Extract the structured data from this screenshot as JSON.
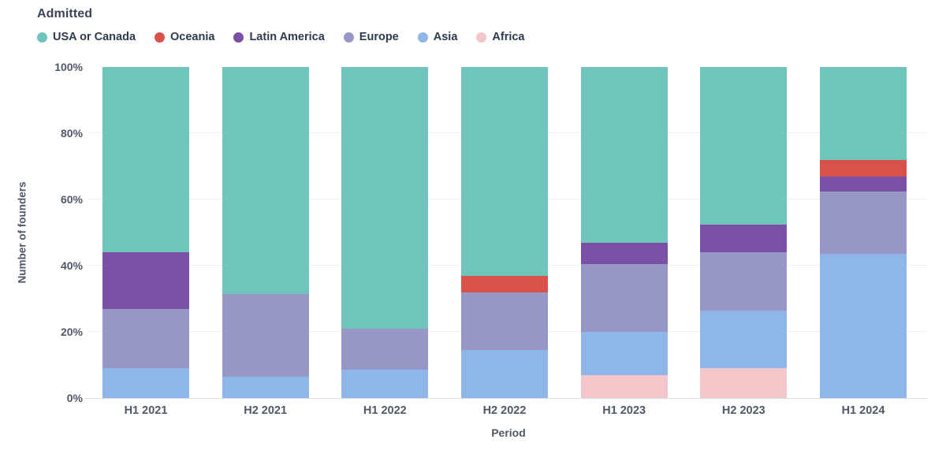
{
  "title": "Admitted",
  "legend": [
    {
      "label": "USA or Canada",
      "color": "#6FC4BB"
    },
    {
      "label": "Oceania",
      "color": "#D8524A"
    },
    {
      "label": "Latin America",
      "color": "#7A4FA6"
    },
    {
      "label": "Europe",
      "color": "#9697C5"
    },
    {
      "label": "Asia",
      "color": "#8FB6E8"
    },
    {
      "label": "Africa",
      "color": "#F3C6C9"
    }
  ],
  "chart_data": {
    "type": "bar",
    "variant": "stacked-100-percent",
    "title": "Admitted",
    "xlabel": "Period",
    "ylabel": "Number of founders",
    "ylim": [
      0,
      100
    ],
    "grid": "horizontal-light",
    "legend_position": "top-left",
    "categories": [
      "H1 2021",
      "H2 2021",
      "H1 2022",
      "H2 2022",
      "H1 2023",
      "H2 2023",
      "H1 2024"
    ],
    "y_ticks": [
      {
        "label": "0%",
        "value": 0
      },
      {
        "label": "20%",
        "value": 20
      },
      {
        "label": "40%",
        "value": 40
      },
      {
        "label": "60%",
        "value": 60
      },
      {
        "label": "80%",
        "value": 80
      },
      {
        "label": "100%",
        "value": 100
      }
    ],
    "gridline_values": [
      20,
      40,
      60,
      80
    ],
    "stack_order_bottom_to_top": [
      "Africa",
      "Asia",
      "Europe",
      "Latin America",
      "Oceania",
      "USA or Canada"
    ],
    "series": [
      {
        "name": "USA or Canada",
        "color": "#6FC4BB",
        "values": [
          56,
          68.5,
          79,
          63,
          53,
          47.5,
          28
        ]
      },
      {
        "name": "Oceania",
        "color": "#D8524A",
        "values": [
          0,
          0,
          0,
          5,
          0,
          0,
          5
        ]
      },
      {
        "name": "Latin America",
        "color": "#7A4FA6",
        "values": [
          17,
          0,
          0,
          0,
          6.5,
          8.5,
          4.5
        ]
      },
      {
        "name": "Europe",
        "color": "#9697C5",
        "values": [
          18,
          25,
          12.5,
          17.5,
          20.5,
          17.5,
          19
        ]
      },
      {
        "name": "Asia",
        "color": "#8FB6E8",
        "values": [
          9,
          6.5,
          8.5,
          14.5,
          13,
          17.5,
          43.5
        ]
      },
      {
        "name": "Africa",
        "color": "#F3C6C9",
        "values": [
          0,
          0,
          0,
          0,
          7,
          9,
          0
        ]
      }
    ]
  }
}
